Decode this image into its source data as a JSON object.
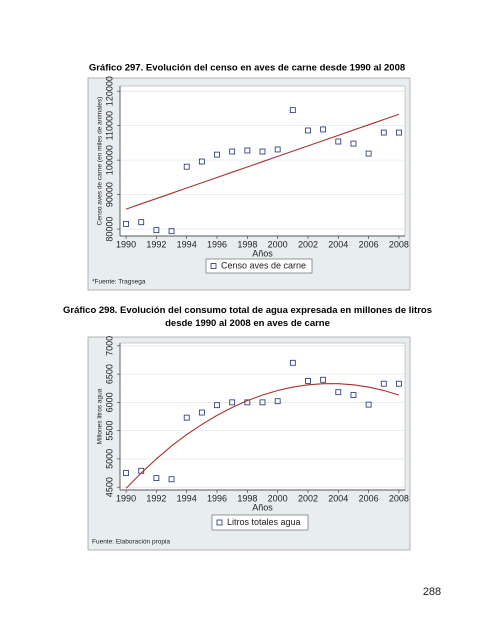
{
  "chart_data": [
    {
      "type": "scatter",
      "title": "Gráfico 297.  Evolución del censo en aves de carne desde 1990 al 2008",
      "x_label": "Años",
      "y_label": "Censo aves de carne (en miles de animales)",
      "source": "*Fuente: Tragsega",
      "x": [
        1990,
        1991,
        1992,
        1993,
        1994,
        1995,
        1996,
        1997,
        1998,
        1999,
        2000,
        2001,
        2002,
        2003,
        2004,
        2005,
        2006,
        2007,
        2008
      ],
      "xlim": [
        1989.6,
        2008.4
      ],
      "xticks": [
        1990,
        1992,
        1994,
        1996,
        1998,
        2000,
        2002,
        2004,
        2006,
        2008
      ],
      "ylim": [
        78000,
        121500
      ],
      "yticks": [
        80000,
        90000,
        100000,
        110000,
        120000
      ],
      "grid": true,
      "series": [
        {
          "name": "Censo aves de carne",
          "color": "#1a2f6e",
          "values": [
            81500,
            82000,
            79700,
            79400,
            98100,
            99600,
            101600,
            102500,
            102800,
            102500,
            103100,
            114500,
            108600,
            108900,
            105400,
            104800,
            101900,
            108000,
            108000
          ]
        },
        {
          "color": "#a83232",
          "style": "line",
          "values": [
            85800,
            87330,
            88860,
            90380,
            91910,
            93440,
            94970,
            96500,
            98020,
            99550,
            101080,
            102610,
            104140,
            105660,
            107190,
            108720,
            110250,
            111780,
            113300
          ]
        }
      ]
    },
    {
      "type": "scatter",
      "title": "Gráfico 298. Evolución del consumo total de agua expresada en millones de litros desde 1990 al 2008 en aves de carne",
      "x_label": "Años",
      "y_label": "Millones litros agua",
      "source": "Fuente: Elaboración propia",
      "x": [
        1990,
        1991,
        1992,
        1993,
        1994,
        1995,
        1996,
        1997,
        1998,
        1999,
        2000,
        2001,
        2002,
        2003,
        2004,
        2005,
        2006,
        2007,
        2008
      ],
      "xlim": [
        1989.6,
        2008.4
      ],
      "xticks": [
        1990,
        1992,
        1994,
        1996,
        1998,
        2000,
        2002,
        2004,
        2006,
        2008
      ],
      "ylim": [
        4450,
        7050
      ],
      "yticks": [
        4500,
        5000,
        5500,
        6000,
        6500,
        7000
      ],
      "grid": true,
      "series": [
        {
          "name": "Litros totales agua",
          "color": "#1a2f6e",
          "values": [
            4750,
            4790,
            4660,
            4640,
            5730,
            5820,
            5950,
            6000,
            6000,
            6000,
            6020,
            6700,
            6380,
            6400,
            6180,
            6130,
            5960,
            6330,
            6330
          ]
        },
        {
          "color": "#a83232",
          "style": "line",
          "values": [
            4480,
            4750,
            5000,
            5230,
            5430,
            5610,
            5770,
            5910,
            6030,
            6130,
            6210,
            6270,
            6310,
            6330,
            6330,
            6310,
            6270,
            6210,
            6130
          ]
        }
      ]
    }
  ],
  "page_number": "288"
}
